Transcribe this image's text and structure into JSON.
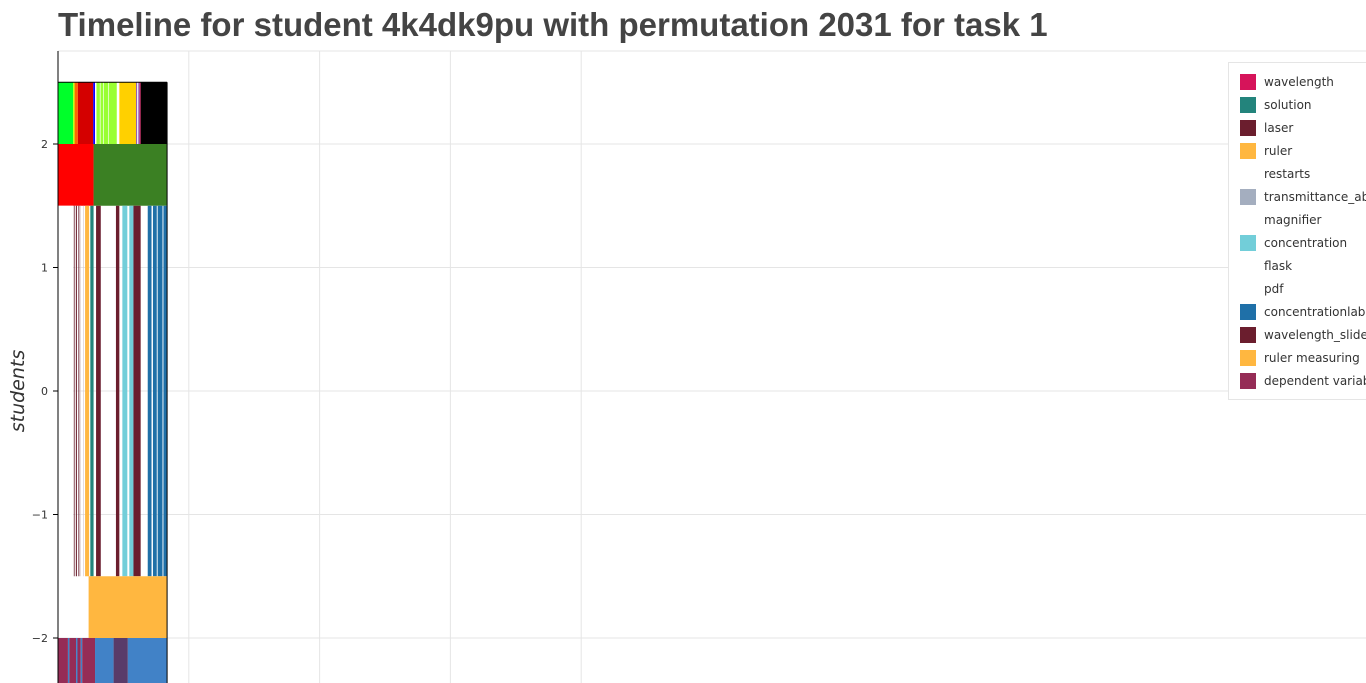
{
  "chart_data": {
    "type": "timeline",
    "title": "Timeline for student 4k4dk9pu with permutation 2031 for task 1",
    "ylabel": "students",
    "xlabel": "",
    "ylim": [
      -2.37,
      2.73
    ],
    "yticks": [
      2,
      1,
      0,
      -1,
      -2
    ],
    "ytick_labels": [
      "2",
      "1",
      "0",
      "−1",
      "−2"
    ],
    "xlim": [
      0,
      100
    ],
    "x_gridlines": [
      10,
      20,
      30,
      40
    ],
    "grid": true,
    "legend_position": "top-right",
    "bar_extent": [
      0,
      8.34
    ],
    "legend": [
      {
        "label": "wavelength",
        "color": "#d6145a"
      },
      {
        "label": "solution",
        "color": "#23847c"
      },
      {
        "label": "laser",
        "color": "#6b1e2e"
      },
      {
        "label": "ruler",
        "color": "#ffb740"
      },
      {
        "label": "restarts",
        "color": "#ffffff"
      },
      {
        "label": "transmittance_abs",
        "color": "#a4aebf"
      },
      {
        "label": "magnifier",
        "color": "#ffffff"
      },
      {
        "label": "concentration",
        "color": "#72ced9"
      },
      {
        "label": "flask",
        "color": "#ffffff"
      },
      {
        "label": "pdf",
        "color": "#ffffff"
      },
      {
        "label": "concentrationlab",
        "color": "#1f70a8"
      },
      {
        "label": "wavelength_slider",
        "color": "#6b1e2e"
      },
      {
        "label": "ruler measuring",
        "color": "#ffb740"
      },
      {
        "label": "dependent variable",
        "color": "#952c56"
      }
    ],
    "rows": [
      {
        "y0": 2.0,
        "y1": 2.5,
        "segments": [
          {
            "x0": 0.0,
            "x1": 1.16,
            "color": "#00ff2a"
          },
          {
            "x0": 1.16,
            "x1": 1.27,
            "color": "#bfff00"
          },
          {
            "x0": 1.27,
            "x1": 1.52,
            "color": "#ff6600"
          },
          {
            "x0": 1.52,
            "x1": 2.69,
            "color": "#d40000"
          },
          {
            "x0": 2.69,
            "x1": 2.83,
            "color": "#1100ff"
          },
          {
            "x0": 2.83,
            "x1": 2.94,
            "color": "#ffffff"
          },
          {
            "x0": 2.94,
            "x1": 4.5,
            "color": "#99ff33"
          },
          {
            "x0": 3.2,
            "x1": 3.25,
            "color": "#ffffff"
          },
          {
            "x0": 3.45,
            "x1": 3.5,
            "color": "#ffffff"
          },
          {
            "x0": 3.85,
            "x1": 3.9,
            "color": "#ffffff"
          },
          {
            "x0": 4.5,
            "x1": 4.69,
            "color": "#ffffff"
          },
          {
            "x0": 4.69,
            "x1": 5.97,
            "color": "#ffd000"
          },
          {
            "x0": 5.97,
            "x1": 6.06,
            "color": "#8a4fb0"
          },
          {
            "x0": 6.06,
            "x1": 6.14,
            "color": "#ffffff"
          },
          {
            "x0": 6.14,
            "x1": 6.24,
            "color": "#8a4fb0"
          },
          {
            "x0": 6.24,
            "x1": 6.32,
            "color": "#d6145a"
          },
          {
            "x0": 6.32,
            "x1": 8.34,
            "color": "#000000"
          }
        ]
      },
      {
        "y0": 1.5,
        "y1": 2.0,
        "segments": [
          {
            "x0": 0.0,
            "x1": 2.72,
            "color": "#ff0000"
          },
          {
            "x0": 2.72,
            "x1": 8.34,
            "color": "#3b8023"
          }
        ]
      },
      {
        "y0": -1.5,
        "y1": 1.5,
        "segments": [
          {
            "x0": 0.0,
            "x1": 1.16,
            "color": "#ffffff"
          },
          {
            "x0": 1.21,
            "x1": 1.27,
            "color": "#6b1e2e"
          },
          {
            "x0": 1.38,
            "x1": 1.45,
            "color": "#6b1e2e"
          },
          {
            "x0": 1.56,
            "x1": 1.63,
            "color": "#6b1e2e"
          },
          {
            "x0": 2.07,
            "x1": 2.38,
            "color": "#ffb740"
          },
          {
            "x0": 2.47,
            "x1": 2.72,
            "color": "#23847c"
          },
          {
            "x0": 2.91,
            "x1": 3.27,
            "color": "#6b1e2e"
          },
          {
            "x0": 4.43,
            "x1": 4.69,
            "color": "#6b1e2e"
          },
          {
            "x0": 4.92,
            "x1": 5.3,
            "color": "#72ced9"
          },
          {
            "x0": 5.45,
            "x1": 5.77,
            "color": "#72ced9"
          },
          {
            "x0": 5.77,
            "x1": 6.32,
            "color": "#6b1e2e"
          },
          {
            "x0": 6.86,
            "x1": 7.15,
            "color": "#1f70a8"
          },
          {
            "x0": 7.26,
            "x1": 7.55,
            "color": "#1f70a8"
          },
          {
            "x0": 7.62,
            "x1": 7.99,
            "color": "#1f70a8"
          },
          {
            "x0": 8.06,
            "x1": 8.34,
            "color": "#1f70a8"
          }
        ]
      },
      {
        "y0": -2.0,
        "y1": -1.5,
        "segments": [
          {
            "x0": 2.34,
            "x1": 8.34,
            "color": "#ffb740"
          }
        ]
      },
      {
        "y0": -2.5,
        "y1": -2.0,
        "segments": [
          {
            "x0": 0.0,
            "x1": 0.76,
            "color": "#952c56"
          },
          {
            "x0": 0.76,
            "x1": 0.87,
            "color": "#4182c7"
          },
          {
            "x0": 0.87,
            "x1": 1.38,
            "color": "#952c56"
          },
          {
            "x0": 1.38,
            "x1": 1.49,
            "color": "#4182c7"
          },
          {
            "x0": 1.49,
            "x1": 1.74,
            "color": "#952c56"
          },
          {
            "x0": 1.74,
            "x1": 1.85,
            "color": "#4182c7"
          },
          {
            "x0": 1.85,
            "x1": 2.83,
            "color": "#952c56"
          },
          {
            "x0": 2.83,
            "x1": 4.25,
            "color": "#4182c7"
          },
          {
            "x0": 4.25,
            "x1": 5.34,
            "color": "#593b69"
          },
          {
            "x0": 5.34,
            "x1": 8.34,
            "color": "#4182c7"
          }
        ]
      }
    ]
  }
}
